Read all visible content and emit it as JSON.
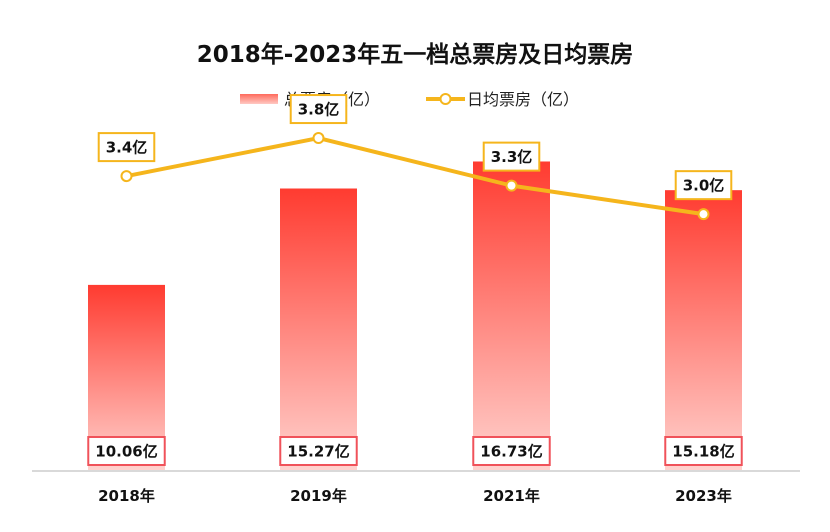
{
  "chart_data": {
    "type": "bar",
    "title": "2018年-2023年五一档总票房及日均票房",
    "xlabel": "",
    "ylabel": "",
    "categories": [
      "2018年",
      "2019年",
      "2021年",
      "2023年"
    ],
    "series": [
      {
        "name": "总票房（亿）",
        "kind": "bar",
        "values": [
          10.06,
          15.27,
          16.73,
          15.18
        ],
        "labels": [
          "10.06亿",
          "15.27亿",
          "16.73亿",
          "15.18亿"
        ],
        "color_top": "#ff3b30",
        "color_bottom": "#ffd3cf",
        "label_border": "#f0525a"
      },
      {
        "name": "日均票房（亿）",
        "kind": "line",
        "values": [
          3.4,
          3.8,
          3.3,
          3.0
        ],
        "labels": [
          "3.4亿",
          "3.8亿",
          "3.3亿",
          "3.0亿"
        ],
        "color": "#f5b51c",
        "label_border": "#f5b51c"
      }
    ],
    "ylim": [
      0,
      18
    ],
    "y2lim": [
      0.3,
      4.2
    ],
    "grid": false,
    "legend": "top-center",
    "axis_line_color": "#d9d9d9"
  }
}
